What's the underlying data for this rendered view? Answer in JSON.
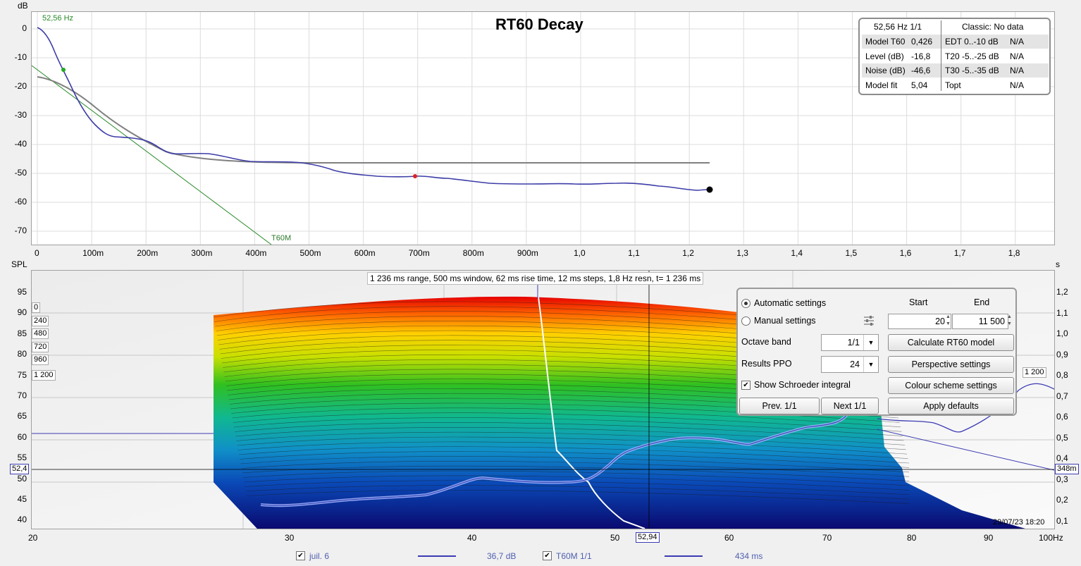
{
  "decay": {
    "title": "RT60 Decay",
    "y_unit": "dB",
    "freq_marker": "52,56 Hz",
    "t60m_label": "T60M",
    "y_ticks": [
      "0",
      "-10",
      "-20",
      "-30",
      "-40",
      "-50",
      "-60",
      "-70"
    ],
    "x_ticks": [
      "0",
      "100m",
      "200m",
      "300m",
      "400m",
      "500m",
      "600m",
      "700m",
      "800m",
      "900m",
      "1,0",
      "1,1",
      "1,2",
      "1,3",
      "1,4",
      "1,5",
      "1,6",
      "1,7",
      "1,8"
    ]
  },
  "info_box": {
    "header_left": "52,56 Hz 1/1",
    "header_right": "Classic: No data",
    "rows": [
      {
        "k1": "Model T60",
        "v1": "0,426",
        "k2": "EDT  0..-10 dB",
        "v2": "N/A"
      },
      {
        "k1": "Level (dB)",
        "v1": "-16,8",
        "k2": "T20 -5..-25 dB",
        "v2": "N/A"
      },
      {
        "k1": "Noise (dB)",
        "v1": "-46,6",
        "k2": "T30 -5..-35 dB",
        "v2": "N/A"
      },
      {
        "k1": "Model fit",
        "v1": "5,04",
        "k2": "Topt",
        "v2": "N/A"
      }
    ]
  },
  "waterfall": {
    "y_unit": "SPL",
    "right_unit": "s",
    "status": "1 236 ms range, 500 ms window, 62 ms rise time, 12 ms steps,  1,8 Hz resn, t= 1 236 ms",
    "y_ticks": [
      "95",
      "90",
      "85",
      "80",
      "75",
      "70",
      "65",
      "60",
      "55",
      "50",
      "45",
      "40"
    ],
    "right_ticks": [
      "1,2",
      "1,1",
      "1,0",
      "0,9",
      "0,8",
      "0,7",
      "0,6",
      "0,5",
      "0,4",
      "0,3",
      "0,2",
      "0,1"
    ],
    "x_ticks": [
      "20",
      "30",
      "40",
      "50",
      "60",
      "70",
      "80",
      "90",
      "100Hz"
    ],
    "time_labels": [
      "0",
      "240",
      "480",
      "720",
      "960",
      "1 200"
    ],
    "right_time_label": "1 200",
    "cursor_spl": "52,4",
    "cursor_freq": "52,94",
    "cursor_time": "348m",
    "timestamp": "29/07/23 18:20",
    "faint_top": "0",
    "faint_mid": "480"
  },
  "controls": {
    "auto_settings": "Automatic settings",
    "manual_settings": "Manual settings",
    "start_label": "Start",
    "end_label": "End",
    "start_value": "20",
    "end_value": "11 500",
    "octave_label": "Octave band",
    "octave_value": "1/1",
    "ppo_label": "Results PPO",
    "ppo_value": "24",
    "schroeder_label": "Show Schroeder integral",
    "calc_btn": "Calculate RT60 model",
    "persp_btn": "Perspective settings",
    "colour_btn": "Colour scheme settings",
    "apply_btn": "Apply defaults",
    "prev_btn": "Prev. 1/1",
    "next_btn": "Next 1/1"
  },
  "legend": [
    {
      "name": "juil. 6",
      "value": "36,7 dB",
      "color": "#3c3cb4"
    },
    {
      "name": "T60M 1/1",
      "value": "434 ms",
      "color": "#3c3cb4"
    }
  ]
}
